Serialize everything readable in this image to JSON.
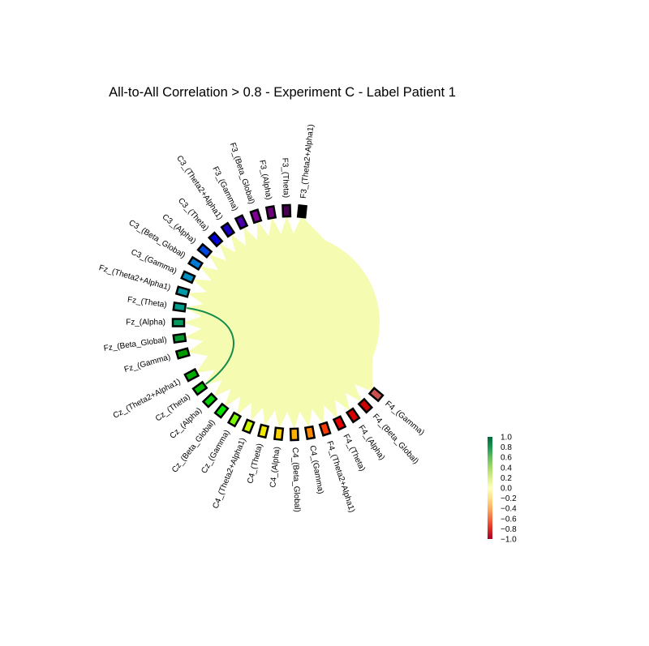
{
  "chart_data": {
    "type": "connectivity-circle",
    "title": "All-to-All Correlation > 0.8 - Experiment C - Label Patient 1",
    "nodes": [
      {
        "label": "F3_(Theta2+Alpha1)",
        "color": "#000000"
      },
      {
        "label": "F3_(Theta)",
        "color": "#4b0055"
      },
      {
        "label": "F3_(Alpha)",
        "color": "#6e007e"
      },
      {
        "label": "F3_(Beta_Global)",
        "color": "#7c0091"
      },
      {
        "label": "F3_(Gamma)",
        "color": "#4a00a8"
      },
      {
        "label": "C3_(Theta2+Alpha1)",
        "color": "#1a00c2"
      },
      {
        "label": "C3_(Theta)",
        "color": "#0000d8"
      },
      {
        "label": "C3_(Alpha)",
        "color": "#0047dd"
      },
      {
        "label": "C3_(Beta_Global)",
        "color": "#0078d3"
      },
      {
        "label": "C3_(Gamma)",
        "color": "#008fbf"
      },
      {
        "label": "Fz_(Theta2+Alpha1)",
        "color": "#009aa6"
      },
      {
        "label": "Fz_(Theta)",
        "color": "#009d8a"
      },
      {
        "label": "Fz_(Alpha)",
        "color": "#009b5c"
      },
      {
        "label": "Fz_(Beta_Global)",
        "color": "#00952d"
      },
      {
        "label": "Fz_(Gamma)",
        "color": "#009a00"
      },
      {
        "label": "Cz_(Theta2+Alpha1)",
        "color": "#00ac00"
      },
      {
        "label": "Cz_(Theta)",
        "color": "#00bd00"
      },
      {
        "label": "Cz_(Alpha)",
        "color": "#00d000"
      },
      {
        "label": "Cz_(Beta_Global)",
        "color": "#00e200"
      },
      {
        "label": "Cz_(Gamma)",
        "color": "#7cf800"
      },
      {
        "label": "C4_(Theta2+Alpha1)",
        "color": "#cff500"
      },
      {
        "label": "C4_(Theta)",
        "color": "#f2e800"
      },
      {
        "label": "C4_(Alpha)",
        "color": "#fcd300"
      },
      {
        "label": "C4_(Beta_Global)",
        "color": "#ffb000"
      },
      {
        "label": "C4_(Gamma)",
        "color": "#ff8a00"
      },
      {
        "label": "F4_(Theta2+Alpha1)",
        "color": "#fb3b00"
      },
      {
        "label": "F4_(Theta)",
        "color": "#e80000"
      },
      {
        "label": "F4_(Alpha)",
        "color": "#d60000"
      },
      {
        "label": "F4_(Beta_Global)",
        "color": "#cc0000"
      },
      {
        "label": "F4_(Gamma)",
        "color": "#c85050"
      }
    ],
    "threshold": 0.8,
    "background_edge_value": 0.05,
    "highlighted_edges": [
      {
        "source": "Fz_(Theta)",
        "target": "Cz_(Theta)",
        "value": 0.85
      }
    ],
    "colorbar": {
      "colormap": "RdYlGn",
      "vmin": -1.0,
      "vmax": 1.0,
      "ticks": [
        "1.0",
        "0.8",
        "0.6",
        "0.4",
        "0.2",
        "0.0",
        "−0.2",
        "−0.4",
        "−0.6",
        "−0.8",
        "−1.0"
      ],
      "stops": [
        "#a50026",
        "#d73027",
        "#f46d43",
        "#fdae61",
        "#fee08b",
        "#ffffbf",
        "#d9ef8b",
        "#a6d96a",
        "#66bd63",
        "#1a9850",
        "#006837"
      ]
    },
    "grid": false,
    "legend": "colorbar-right"
  }
}
